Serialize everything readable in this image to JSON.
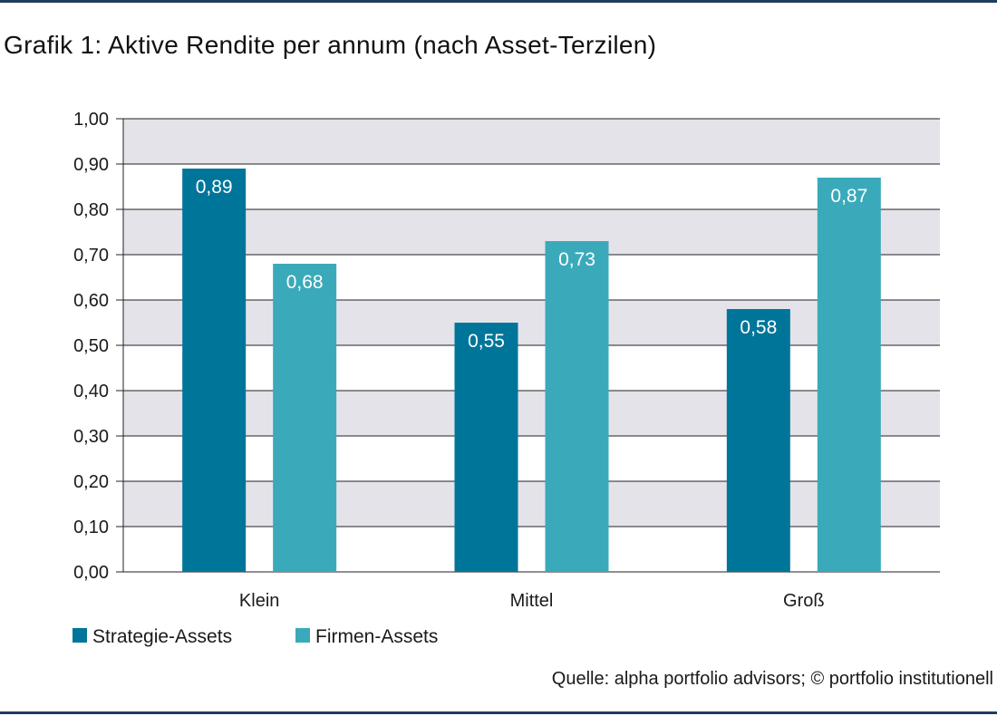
{
  "title": "Grafik 1: Aktive Rendite per annum (nach Asset-Terzilen)",
  "source": "Quelle: alpha portfolio advisors; © portfolio institutionell",
  "chart_data": {
    "type": "bar",
    "categories": [
      "Klein",
      "Mittel",
      "Groß"
    ],
    "series": [
      {
        "name": "Strategie-Assets",
        "values": [
          0.89,
          0.55,
          0.58
        ],
        "labels": [
          "0,89",
          "0,55",
          "0,58"
        ],
        "color": "#00759a"
      },
      {
        "name": "Firmen-Assets",
        "values": [
          0.68,
          0.73,
          0.87
        ],
        "labels": [
          "0,68",
          "0,73",
          "0,87"
        ],
        "color": "#3aaabb"
      }
    ],
    "ylim": [
      0,
      1
    ],
    "yticks": [
      "0,00",
      "0,10",
      "0,20",
      "0,30",
      "0,40",
      "0,50",
      "0,60",
      "0,70",
      "0,80",
      "0,90",
      "1,00"
    ],
    "ytick_values": [
      0,
      0.1,
      0.2,
      0.3,
      0.4,
      0.5,
      0.6,
      0.7,
      0.8,
      0.9,
      1.0
    ],
    "grid": true,
    "band_color": "#e4e3ea",
    "legend_position": "bottom-left"
  }
}
